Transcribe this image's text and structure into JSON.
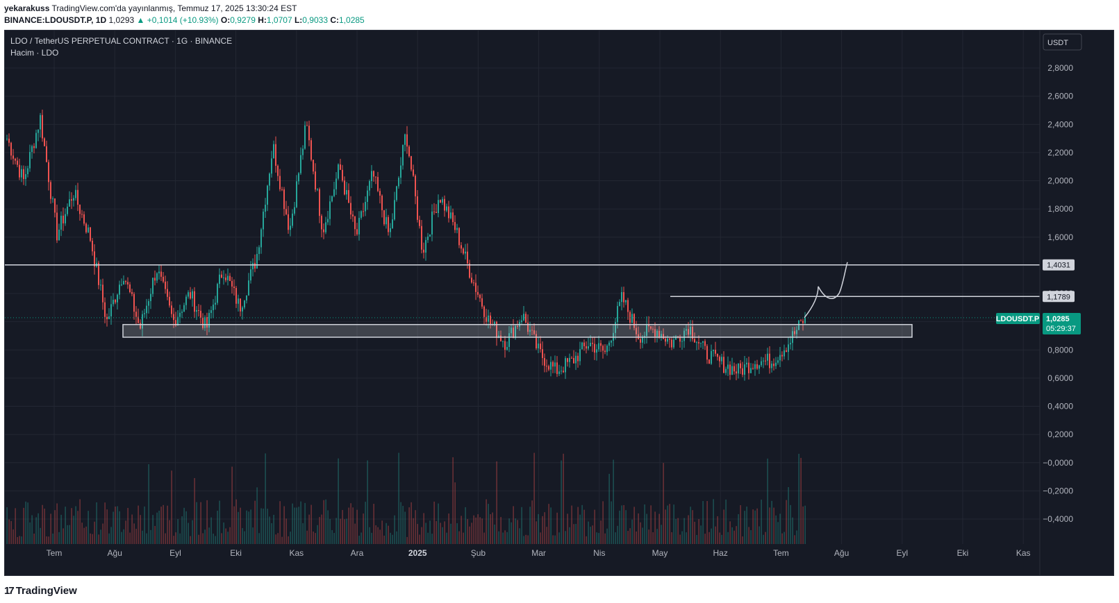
{
  "header": {
    "author": "yekarakuss",
    "published": "TradingView.com'da yayınlanmış, Temmuz 17, 2025 13:30:24 EST",
    "symbol": "BINANCE:LDOUSDT.P, 1D",
    "last": "1,0293",
    "change_icon": "up-triangle-icon",
    "change": "+0,1014 (+10.93%)",
    "o_label": "O:",
    "o": "0,9279",
    "h_label": "H:",
    "h": "1,0707",
    "l_label": "L:",
    "l": "0,9033",
    "c_label": "C:",
    "c": "1,0285"
  },
  "legend": {
    "title": "LDO / TetherUS PERPETUAL CONTRACT · 1G · BINANCE",
    "volume": "Hacim · LDO"
  },
  "currency_button": "USDT",
  "price_tag": {
    "symbol": "LDOUSDT.P",
    "price": "1,0285",
    "countdown": "05:29:37"
  },
  "footer": {
    "logo_icon": "tradingview-logo-icon",
    "brand": "TradingView"
  },
  "colors": {
    "up": "#26a69a",
    "down": "#ef5350",
    "background": "#161a25",
    "grid": "#232733",
    "lines": "#d1d4dc"
  },
  "chart_data": {
    "type": "candlestick",
    "y_ticks": [
      "2,8000",
      "2,6000",
      "2,4000",
      "2,2000",
      "2,0000",
      "1,8000",
      "1,6000",
      "1,4000",
      "1,2000",
      "1,0000",
      "0,8000",
      "0,6000",
      "0,4000",
      "0,2000",
      "−0,0000",
      "−0,2000",
      "−0,4000"
    ],
    "y_range": [
      -0.5,
      2.9
    ],
    "x_ticks": [
      "Tem",
      "Ağu",
      "Eyl",
      "Eki",
      "Kas",
      "Ara",
      "2025",
      "Şub",
      "Mar",
      "Nis",
      "May",
      "Haz",
      "Tem",
      "Ağu",
      "Eyl",
      "Eki",
      "Kas"
    ],
    "horizontal_levels": [
      {
        "label": "1,4031",
        "value": 1.4031
      },
      {
        "label": "1,1789",
        "value": 1.1789
      }
    ],
    "last_price": 1.0285,
    "support_zone": {
      "from": 0.89,
      "to": 0.98
    },
    "price_path": [
      [
        2.3,
        2.25
      ],
      [
        2.0,
        1.9
      ],
      [
        2.45,
        2.5
      ],
      [
        1.62,
        1.6
      ],
      [
        1.92,
        1.95
      ],
      [
        1.6,
        1.65
      ],
      [
        1.0,
        0.98
      ],
      [
        1.35,
        1.3
      ],
      [
        0.95,
        0.92
      ],
      [
        1.38,
        1.36
      ],
      [
        1.0,
        0.98
      ],
      [
        1.2,
        1.18
      ],
      [
        0.95,
        0.93
      ],
      [
        1.38,
        1.36
      ],
      [
        1.1,
        1.08
      ],
      [
        1.45,
        1.5
      ],
      [
        2.25,
        2.3
      ],
      [
        1.65,
        1.6
      ],
      [
        2.4,
        2.45
      ],
      [
        1.65,
        1.6
      ],
      [
        2.1,
        2.15
      ],
      [
        1.6,
        1.62
      ],
      [
        2.05,
        2.1
      ],
      [
        1.6,
        1.62
      ],
      [
        2.35,
        2.4
      ],
      [
        1.5,
        1.45
      ],
      [
        1.9,
        1.92
      ],
      [
        1.65,
        1.6
      ],
      [
        1.3,
        1.28
      ],
      [
        1.0,
        0.98
      ],
      [
        0.85,
        0.87
      ],
      [
        1.05,
        1.03
      ],
      [
        0.78,
        0.75
      ],
      [
        0.65,
        0.63
      ],
      [
        0.72,
        0.74
      ],
      [
        0.85,
        0.86
      ],
      [
        0.78,
        0.76
      ],
      [
        1.17,
        1.16
      ],
      [
        0.9,
        0.88
      ],
      [
        0.95,
        0.93
      ],
      [
        0.85,
        0.83
      ],
      [
        0.97,
        0.96
      ],
      [
        0.78,
        0.76
      ],
      [
        0.7,
        0.68
      ],
      [
        0.65,
        0.66
      ],
      [
        0.72,
        0.73
      ],
      [
        0.72,
        0.74
      ],
      [
        0.85,
        0.87
      ],
      [
        1.03,
        1.03
      ]
    ]
  }
}
